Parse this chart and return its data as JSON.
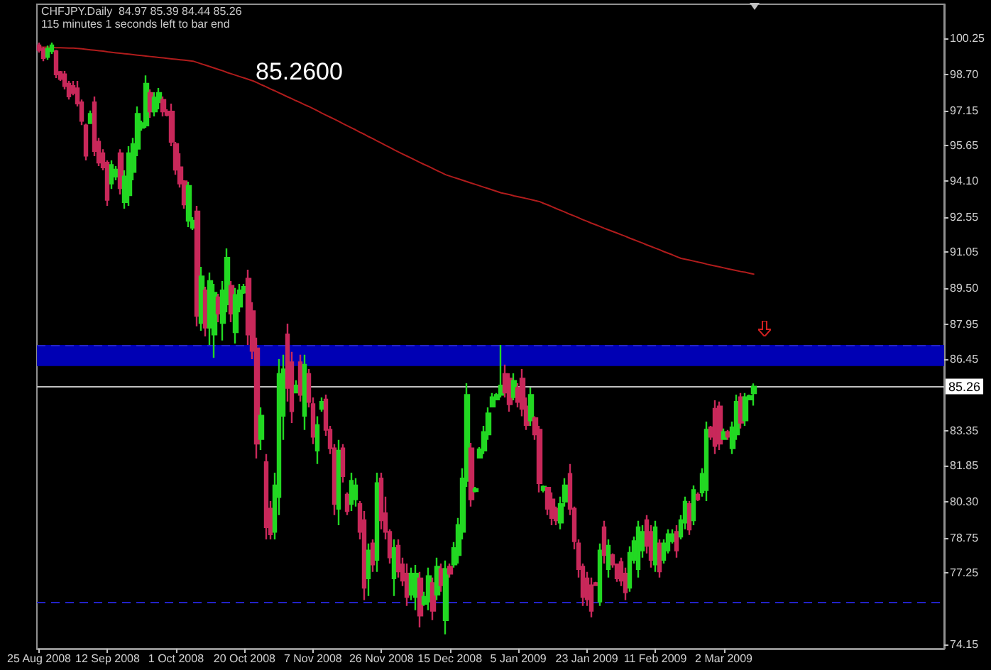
{
  "chart_data": {
    "type": "candlestick",
    "title": "CHFJPY.Daily  84.97 85.39 84.44 85.26",
    "subtitle": "115 minutes 1 seconds left to bar end",
    "annotations": [
      "85.2600"
    ],
    "categories": [
      "25 Aug 2008",
      null,
      null,
      null,
      null,
      null,
      null,
      null,
      null,
      null,
      null,
      null,
      null,
      null,
      null,
      null,
      "12 Sep 2008",
      null,
      null,
      null,
      null,
      null,
      null,
      null,
      null,
      null,
      null,
      null,
      null,
      null,
      null,
      null,
      "1 Oct 2008",
      null,
      null,
      null,
      null,
      null,
      null,
      null,
      null,
      null,
      null,
      null,
      null,
      null,
      null,
      null,
      "20 Oct 2008",
      null,
      null,
      null,
      null,
      null,
      null,
      null,
      null,
      null,
      null,
      null,
      null,
      null,
      null,
      null,
      "7 Nov 2008",
      null,
      null,
      null,
      null,
      null,
      null,
      null,
      null,
      null,
      null,
      null,
      null,
      null,
      null,
      null,
      "26 Nov 2008",
      null,
      null,
      null,
      null,
      null,
      null,
      null,
      null,
      null,
      null,
      null,
      null,
      null,
      null,
      null,
      "15 Dec 2008",
      null,
      null,
      null,
      null,
      null,
      null,
      null,
      null,
      null,
      null,
      null,
      null,
      null,
      null,
      null,
      "5 Jan 2009",
      null,
      null,
      null,
      null,
      null,
      null,
      null,
      null,
      null,
      null,
      null,
      null,
      null,
      null,
      null,
      "23 Jan 2009",
      null,
      null,
      null,
      null,
      null,
      null,
      null,
      null,
      null,
      null,
      null,
      null,
      null,
      null,
      null,
      "11 Feb 2009",
      null,
      null,
      null,
      null,
      null,
      null,
      null,
      null,
      null,
      null,
      null,
      null,
      null,
      null,
      null,
      "2 Mar 2009",
      null,
      null,
      null,
      null,
      null,
      null,
      null,
      null,
      null,
      null,
      null,
      null,
      null,
      null,
      null,
      null,
      null,
      null,
      null,
      null,
      null,
      null,
      null,
      null,
      null,
      null,
      null,
      null,
      null,
      null,
      null,
      null,
      null,
      null,
      null,
      null,
      null,
      null,
      null,
      null,
      null,
      null,
      null,
      null,
      null,
      null,
      null,
      null,
      null,
      null,
      null
    ],
    "ylim": [
      73.97,
      101.72
    ],
    "yticks": [
      {
        "value": 74.15,
        "label": "74.15"
      },
      {
        "value": 77.25,
        "label": "77.25"
      },
      {
        "value": 78.75,
        "label": "78.75"
      },
      {
        "value": 80.3,
        "label": "80.30"
      },
      {
        "value": 81.85,
        "label": "81.85"
      },
      {
        "value": 83.35,
        "label": "83.35"
      },
      {
        "value": 86.45,
        "label": "86.45"
      },
      {
        "value": 87.95,
        "label": "87.95"
      },
      {
        "value": 89.5,
        "label": "89.50"
      },
      {
        "value": 91.05,
        "label": "91.05"
      },
      {
        "value": 92.55,
        "label": "92.55"
      },
      {
        "value": 94.1,
        "label": "94.10"
      },
      {
        "value": 95.65,
        "label": "95.65"
      },
      {
        "value": 97.15,
        "label": "97.15"
      },
      {
        "value": 98.7,
        "label": "98.70"
      },
      {
        "value": 100.25,
        "label": "100.25"
      }
    ],
    "grid": false,
    "series": [
      {
        "colors": [
          "#c8285a",
          "#c8285a",
          "#22d822",
          "#22d822",
          "#c8285a",
          "#c8285a",
          "#c8285a",
          "#c8285a",
          "#c8285a",
          "#c8285a",
          "#c8285a",
          "#c8285a",
          "#22d822",
          "#c8285a",
          "#c8285a",
          "#c8285a",
          "#c8285a",
          "#22d822",
          "#22d822",
          "#c8285a",
          "#22d822",
          "#22d822",
          "#22d822",
          "#22d822",
          "#22d822",
          "#22d822",
          "#c8285a",
          "#22d822",
          "#22d822",
          "#c8285a",
          "#c8285a",
          "#c8285a",
          "#c8285a",
          "#c8285a",
          "#c8285a",
          "#22d822",
          "#22d822",
          "#c8285a",
          "#22d822",
          "#c8285a",
          "#22d822",
          "#22d822",
          "#c8285a",
          "#22d822",
          "#22d822",
          "#c8285a",
          "#22d822",
          "#22d822",
          "#22d822",
          "#c8285a",
          "#c8285a",
          "#c8285a",
          "#22d822",
          "#c8285a",
          "#c8285a",
          "#22d822",
          "#22d822",
          "#22d822",
          "#c8285a",
          "#c8285a",
          "#22d822",
          "#c8285a",
          "#22d822",
          "#c8285a",
          "#c8285a",
          "#22d822",
          "#22d822",
          "#c8285a",
          "#c8285a",
          "#c8285a",
          "#22d822",
          "#c8285a",
          "#c8285a",
          "#22d822",
          "#22d822",
          "#c8285a",
          "#c8285a",
          "#22d822",
          "#c8285a",
          "#22d822",
          "#c8285a",
          "#c8285a",
          "#c8285a",
          "#22d822",
          "#c8285a",
          "#c8285a",
          "#c8285a",
          "#22d822",
          "#22d822",
          "#c8285a",
          "#22d822",
          "#22d822",
          "#c8285a",
          "#22d822",
          "#c8285a",
          "#22d822",
          "#c8285a",
          "#22d822",
          "#22d822",
          "#22d822",
          "#22d822",
          "#c8285a",
          "#22d822",
          "#22d822",
          "#22d822",
          "#22d822",
          "#22d822",
          "#22d822",
          "#22d822",
          "#c8285a",
          "#c8285a",
          "#22d822",
          "#c8285a",
          "#c8285a",
          "#c8285a",
          "#22d822",
          "#c8285a",
          "#c8285a",
          "#22d822",
          "#c8285a",
          "#c8285a",
          "#c8285a",
          "#22d822",
          "#22d822",
          "#c8285a",
          "#c8285a",
          "#c8285a",
          "#c8285a",
          "#c8285a",
          "#c8285a",
          "#c8285a",
          "#22d822",
          "#c8285a",
          "#22d822",
          "#c8285a",
          "#c8285a",
          "#c8285a",
          "#c8285a",
          "#22d822",
          "#22d822",
          "#22d822",
          "#22d822",
          "#c8285a",
          "#c8285a",
          "#22d822",
          "#c8285a",
          "#22d822",
          "#22d822",
          "#22d822",
          "#c8285a",
          "#22d822",
          "#22d822",
          "#c8285a",
          "#22d822",
          "#c8285a",
          "#22d822",
          "#22d822",
          "#c8285a",
          "#c8285a",
          "#c8285a",
          "#22d822",
          "#c8285a",
          "#22d822",
          "#22d822",
          "#c8285a",
          "#22d822",
          "#22d822",
          "#22d822",
          null,
          null,
          null,
          null,
          null,
          null,
          null,
          null,
          null,
          null,
          null,
          null,
          null,
          null,
          null,
          null,
          null,
          null,
          null,
          null,
          null,
          null,
          null,
          null,
          null,
          null,
          null,
          null,
          null,
          null,
          null,
          null,
          null,
          null,
          null,
          null,
          null,
          null,
          null,
          null,
          null,
          null,
          null,
          null
        ],
        "ohlc": [
          [
            99.95,
            100.07,
            99.64,
            99.75
          ],
          [
            99.8,
            99.88,
            99.27,
            99.4
          ],
          [
            99.45,
            99.94,
            99.33,
            99.8
          ],
          [
            99.7,
            100.07,
            99.58,
            99.95
          ],
          [
            99.7,
            99.76,
            98.54,
            98.7
          ],
          [
            98.8,
            98.85,
            98.42,
            98.5
          ],
          [
            98.7,
            98.85,
            98.05,
            98.2
          ],
          [
            98.3,
            98.42,
            97.62,
            97.75
          ],
          [
            98.2,
            98.42,
            97.8,
            97.9
          ],
          [
            98.1,
            98.42,
            97.32,
            97.45
          ],
          [
            97.5,
            97.62,
            96.52,
            96.7
          ],
          [
            96.5,
            96.58,
            95.0,
            95.2
          ],
          [
            96.6,
            97.14,
            96.58,
            97.0
          ],
          [
            97.5,
            97.75,
            95.18,
            95.4
          ],
          [
            95.8,
            95.97,
            94.75,
            94.9
          ],
          [
            95.3,
            95.48,
            94.57,
            94.7
          ],
          [
            94.9,
            95.0,
            93.04,
            93.3
          ],
          [
            94.0,
            95.0,
            93.77,
            94.8
          ],
          [
            94.3,
            94.75,
            94.14,
            94.6
          ],
          [
            95.3,
            95.48,
            93.53,
            93.8
          ],
          [
            93.2,
            94.57,
            92.92,
            94.3
          ],
          [
            93.5,
            95.61,
            93.04,
            95.3
          ],
          [
            94.5,
            95.97,
            94.14,
            95.7
          ],
          [
            95.5,
            97.32,
            95.18,
            97.0
          ],
          [
            96.4,
            96.71,
            96.28,
            96.6
          ],
          [
            96.5,
            98.66,
            96.4,
            98.3
          ],
          [
            97.9,
            98.05,
            96.83,
            97.1
          ],
          [
            97.1,
            97.93,
            96.89,
            97.7
          ],
          [
            97.5,
            98.11,
            97.2,
            97.9
          ],
          [
            97.6,
            97.75,
            96.89,
            97.1
          ],
          [
            97.1,
            97.2,
            96.89,
            96.95
          ],
          [
            97.1,
            97.44,
            95.61,
            95.8
          ],
          [
            95.7,
            95.79,
            94.38,
            94.6
          ],
          [
            94.7,
            95.3,
            93.83,
            94.0
          ],
          [
            94.1,
            94.14,
            92.92,
            93.1
          ],
          [
            92.4,
            94.08,
            92.12,
            93.9
          ],
          [
            92.1,
            92.55,
            92.0,
            92.4
          ],
          [
            92.8,
            93.04,
            87.85,
            88.3
          ],
          [
            88.0,
            90.41,
            87.66,
            90.0
          ],
          [
            89.4,
            89.56,
            87.42,
            87.8
          ],
          [
            87.8,
            90.17,
            87.05,
            89.8
          ],
          [
            87.5,
            89.68,
            86.5,
            89.3
          ],
          [
            89.1,
            89.25,
            88.03,
            88.4
          ],
          [
            88.0,
            89.8,
            87.24,
            89.4
          ],
          [
            88.8,
            91.21,
            88.46,
            90.8
          ],
          [
            89.6,
            89.8,
            88.03,
            88.4
          ],
          [
            87.6,
            89.5,
            87.11,
            89.2
          ],
          [
            88.7,
            89.68,
            88.46,
            89.4
          ],
          [
            89.3,
            89.68,
            89.25,
            89.55
          ],
          [
            89.9,
            90.29,
            87.05,
            87.5
          ],
          [
            88.5,
            88.89,
            86.44,
            86.8
          ],
          [
            86.9,
            87.36,
            82.16,
            82.8
          ],
          [
            83.0,
            84.36,
            82.53,
            84.0
          ],
          [
            82.0,
            82.35,
            78.68,
            79.2
          ],
          [
            80.0,
            80.33,
            78.68,
            78.9
          ],
          [
            79.0,
            81.55,
            78.68,
            81.0
          ],
          [
            80.5,
            86.44,
            79.72,
            85.8
          ],
          [
            84.0,
            86.63,
            82.96,
            86.0
          ],
          [
            87.5,
            87.97,
            84.61,
            85.2
          ],
          [
            86.3,
            86.75,
            83.69,
            84.2
          ],
          [
            85.0,
            85.53,
            84.98,
            85.3
          ],
          [
            86.3,
            86.63,
            84.61,
            84.9
          ],
          [
            84.0,
            86.63,
            83.39,
            86.2
          ],
          [
            85.8,
            86.01,
            84.36,
            84.6
          ],
          [
            84.5,
            84.79,
            82.78,
            83.1
          ],
          [
            82.5,
            83.98,
            81.92,
            83.6
          ],
          [
            84.3,
            84.79,
            84.18,
            84.6
          ],
          [
            84.7,
            84.91,
            83.14,
            83.4
          ],
          [
            83.4,
            83.57,
            82.35,
            82.6
          ],
          [
            82.6,
            82.78,
            79.72,
            80.2
          ],
          [
            80.0,
            82.96,
            79.29,
            82.5
          ],
          [
            82.6,
            82.78,
            81.13,
            81.4
          ],
          [
            80.6,
            80.7,
            79.72,
            79.9
          ],
          [
            80.2,
            81.55,
            79.9,
            81.2
          ],
          [
            80.4,
            81.31,
            80.09,
            81.0
          ],
          [
            80.2,
            80.33,
            78.68,
            79.0
          ],
          [
            79.5,
            79.9,
            76.06,
            76.6
          ],
          [
            77.0,
            78.5,
            76.24,
            78.2
          ],
          [
            78.5,
            78.68,
            77.28,
            77.6
          ],
          [
            77.8,
            81.55,
            77.28,
            81.1
          ],
          [
            81.3,
            81.55,
            79.11,
            79.5
          ],
          [
            79.8,
            80.52,
            78.68,
            79.0
          ],
          [
            79.0,
            79.11,
            77.64,
            77.9
          ],
          [
            77.0,
            78.68,
            76.24,
            78.3
          ],
          [
            78.4,
            78.68,
            77.03,
            77.3
          ],
          [
            77.6,
            77.89,
            76.67,
            76.9
          ],
          [
            77.2,
            77.64,
            75.81,
            76.2
          ],
          [
            76.3,
            77.46,
            76.06,
            77.2
          ],
          [
            76.2,
            77.58,
            75.63,
            77.2
          ],
          [
            77.0,
            77.28,
            74.89,
            75.4
          ],
          [
            75.9,
            76.42,
            75.81,
            76.2
          ],
          [
            76.0,
            77.46,
            75.63,
            77.1
          ],
          [
            76.8,
            77.03,
            75.2,
            75.6
          ],
          [
            76.3,
            77.89,
            76.06,
            77.5
          ],
          [
            77.4,
            77.64,
            76.42,
            76.7
          ],
          [
            75.2,
            77.77,
            74.59,
            77.4
          ],
          [
            77.5,
            77.64,
            77.03,
            77.2
          ],
          [
            77.6,
            78.56,
            77.46,
            78.3
          ],
          [
            78.0,
            79.6,
            77.64,
            79.3
          ],
          [
            79.0,
            81.74,
            78.68,
            81.3
          ],
          [
            81.2,
            85.4,
            80.94,
            84.9
          ],
          [
            82.6,
            82.83,
            80.09,
            80.4
          ],
          [
            80.75,
            80.94,
            80.7,
            80.85
          ],
          [
            82.2,
            82.65,
            82.16,
            82.55
          ],
          [
            82.5,
            83.57,
            82.35,
            83.3
          ],
          [
            83.2,
            84.36,
            82.96,
            84.1
          ],
          [
            84.4,
            84.98,
            84.36,
            84.8
          ],
          [
            84.7,
            84.98,
            84.67,
            84.9
          ],
          [
            84.9,
            87.05,
            84.79,
            85.3
          ],
          [
            85.8,
            86.2,
            84.79,
            85.0
          ],
          [
            85.6,
            85.83,
            84.18,
            84.5
          ],
          [
            84.8,
            85.83,
            84.67,
            85.5
          ],
          [
            85.2,
            85.4,
            84.36,
            84.6
          ],
          [
            85.6,
            86.01,
            83.98,
            84.3
          ],
          [
            84.4,
            84.79,
            83.39,
            83.6
          ],
          [
            83.8,
            85.22,
            83.57,
            84.9
          ],
          [
            83.9,
            83.98,
            82.96,
            83.2
          ],
          [
            83.4,
            83.57,
            80.7,
            81.1
          ],
          [
            80.8,
            81.0,
            80.7,
            80.95
          ],
          [
            80.9,
            80.94,
            79.72,
            80.0
          ],
          [
            80.4,
            80.7,
            79.29,
            79.6
          ],
          [
            80.0,
            80.09,
            79.29,
            79.5
          ],
          [
            79.4,
            80.52,
            79.11,
            80.2
          ],
          [
            80.3,
            81.31,
            80.09,
            81.0
          ],
          [
            81.5,
            81.92,
            79.72,
            80.0
          ],
          [
            80.0,
            80.09,
            78.25,
            78.6
          ],
          [
            78.5,
            78.68,
            77.03,
            77.4
          ],
          [
            77.5,
            77.64,
            75.81,
            76.2
          ],
          [
            77.0,
            77.28,
            75.81,
            76.1
          ],
          [
            76.7,
            77.03,
            75.32,
            75.6
          ],
          [
            76.8,
            76.85,
            76.67,
            76.7
          ],
          [
            76.0,
            78.5,
            75.81,
            78.2
          ],
          [
            79.2,
            79.48,
            77.64,
            78.0
          ],
          [
            77.4,
            78.68,
            77.03,
            78.4
          ],
          [
            78.0,
            78.07,
            77.46,
            77.6
          ],
          [
            77.6,
            77.64,
            76.85,
            77.0
          ],
          [
            77.7,
            77.89,
            76.67,
            76.9
          ],
          [
            77.2,
            77.46,
            76.06,
            76.4
          ],
          [
            76.6,
            78.38,
            76.42,
            78.1
          ],
          [
            77.8,
            78.8,
            77.64,
            78.6
          ],
          [
            77.4,
            79.48,
            77.03,
            79.2
          ],
          [
            78.2,
            79.29,
            77.89,
            79.0
          ],
          [
            79.5,
            79.72,
            78.07,
            78.4
          ],
          [
            79.0,
            79.29,
            77.46,
            77.8
          ],
          [
            77.6,
            79.48,
            77.28,
            79.2
          ],
          [
            78.5,
            78.68,
            77.03,
            77.3
          ],
          [
            77.8,
            78.68,
            77.64,
            78.5
          ],
          [
            78.2,
            79.11,
            78.07,
            78.9
          ],
          [
            78.6,
            79.11,
            78.5,
            78.9
          ],
          [
            79.0,
            79.29,
            77.89,
            78.2
          ],
          [
            78.8,
            79.72,
            78.68,
            79.5
          ],
          [
            79.4,
            80.52,
            79.11,
            80.3
          ],
          [
            80.2,
            80.33,
            78.87,
            79.1
          ],
          [
            79.5,
            81.0,
            79.29,
            80.8
          ],
          [
            80.6,
            80.7,
            80.33,
            80.4
          ],
          [
            80.7,
            81.74,
            80.52,
            81.5
          ],
          [
            80.8,
            83.75,
            80.33,
            83.4
          ],
          [
            83.5,
            83.57,
            82.96,
            83.1
          ],
          [
            84.3,
            84.67,
            82.35,
            82.7
          ],
          [
            84.4,
            84.61,
            82.53,
            82.8
          ],
          [
            83.0,
            83.45,
            82.96,
            83.3
          ],
          [
            83.3,
            83.39,
            82.96,
            83.1
          ],
          [
            82.6,
            83.75,
            82.35,
            83.5
          ],
          [
            83.2,
            84.91,
            82.96,
            84.6
          ],
          [
            84.8,
            84.98,
            83.45,
            83.7
          ],
          [
            83.8,
            84.98,
            83.57,
            84.8
          ],
          [
            84.7,
            84.91,
            84.67,
            84.85
          ],
          [
            84.97,
            85.39,
            84.44,
            85.26
          ],
          null,
          null,
          null,
          null,
          null,
          null,
          null,
          null,
          null,
          null,
          null,
          null,
          null,
          null,
          null,
          null,
          null,
          null,
          null,
          null,
          null,
          null,
          null,
          null,
          null,
          null,
          null,
          null,
          null,
          null,
          null,
          null,
          null,
          null,
          null,
          null,
          null,
          null,
          null,
          null,
          null,
          null,
          null,
          null
        ]
      },
      {
        "type": "line",
        "color": "#b01c1c",
        "marker": "none",
        "line_style": "solid",
        "values": [
          99.88,
          99.87,
          99.87,
          99.86,
          99.85,
          99.85,
          99.84,
          99.83,
          99.83,
          99.82,
          99.8,
          99.78,
          99.76,
          99.74,
          99.72,
          99.7,
          99.67,
          99.65,
          99.63,
          99.61,
          99.59,
          99.57,
          99.55,
          99.53,
          99.51,
          99.49,
          99.47,
          99.45,
          99.43,
          99.41,
          99.39,
          99.37,
          99.35,
          99.33,
          99.31,
          99.29,
          99.27,
          99.21,
          99.15,
          99.09,
          99.03,
          98.97,
          98.91,
          98.85,
          98.78,
          98.72,
          98.66,
          98.6,
          98.54,
          98.48,
          98.42,
          98.34,
          98.25,
          98.17,
          98.08,
          98.0,
          97.91,
          97.83,
          97.74,
          97.66,
          97.57,
          97.49,
          97.4,
          97.32,
          97.23,
          97.14,
          97.04,
          96.95,
          96.86,
          96.77,
          96.68,
          96.58,
          96.49,
          96.4,
          96.31,
          96.21,
          96.12,
          96.02,
          95.93,
          95.83,
          95.74,
          95.64,
          95.55,
          95.45,
          95.36,
          95.27,
          95.18,
          95.09,
          95.0,
          94.91,
          94.82,
          94.74,
          94.65,
          94.56,
          94.47,
          94.38,
          94.32,
          94.26,
          94.2,
          94.14,
          94.08,
          94.02,
          93.96,
          93.9,
          93.84,
          93.78,
          93.72,
          93.66,
          93.6,
          93.56,
          93.52,
          93.47,
          93.43,
          93.39,
          93.35,
          93.31,
          93.26,
          93.22,
          93.14,
          93.07,
          92.99,
          92.91,
          92.84,
          92.76,
          92.68,
          92.61,
          92.53,
          92.45,
          92.38,
          92.3,
          92.23,
          92.16,
          92.08,
          92.01,
          91.94,
          91.87,
          91.8,
          91.73,
          91.65,
          91.58,
          91.51,
          91.44,
          91.36,
          91.29,
          91.22,
          91.15,
          91.07,
          91.0,
          90.93,
          90.85,
          90.78,
          90.74,
          90.7,
          90.66,
          90.62,
          90.58,
          90.53,
          90.49,
          90.45,
          90.41,
          90.37,
          90.33,
          90.29,
          90.25,
          90.21,
          90.18,
          90.14,
          90.1,
          null,
          null,
          null,
          null,
          null,
          null,
          null,
          null,
          null,
          null,
          null,
          null,
          null,
          null,
          null,
          null,
          null,
          null,
          null,
          null,
          null,
          null,
          null,
          null,
          null,
          null,
          null,
          null,
          null,
          null,
          null,
          null,
          null,
          null,
          null,
          null,
          null,
          null,
          null,
          null,
          null,
          null,
          null,
          null
        ]
      }
    ],
    "ref_lines": [
      {
        "axis": "y",
        "value": 85.26,
        "label": "85.26",
        "color": "#c0c0c0",
        "line_style": "solid"
      },
      {
        "axis": "y",
        "value": 87.05,
        "color": "#2323c8",
        "line_style": "dashed"
      },
      {
        "axis": "y",
        "value": 75.95,
        "color": "#2323c8",
        "line_style": "dashed"
      }
    ],
    "bands": [
      {
        "axis": "y",
        "from": 86.14,
        "to": 87.05,
        "color": "#0000b4"
      }
    ]
  }
}
